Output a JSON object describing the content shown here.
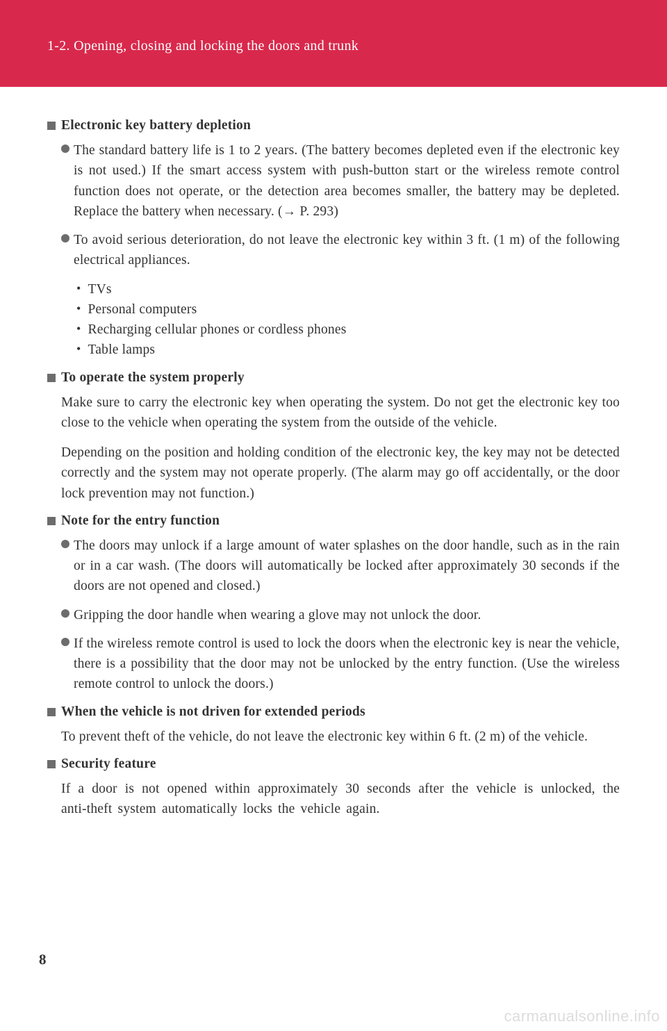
{
  "header": {
    "section_number": "1-2. Opening, closing and locking the doors and trunk",
    "background_color": "#d8294c",
    "text_color": "#ffffff"
  },
  "sections": [
    {
      "heading": "Electronic key battery depletion",
      "bullets": [
        "The standard battery life is 1 to 2 years. (The battery becomes depleted even if the electronic key is not used.) If the smart access system with push-button start or the wireless remote control function does not operate, or the detection area becomes smaller, the battery may be depleted. Replace the battery when necessary. (→ P. 293)",
        "To avoid serious deterioration, do not leave the electronic key within 3 ft. (1 m) of the following electrical appliances."
      ],
      "sub_items": [
        "TVs",
        "Personal computers",
        "Recharging cellular phones or cordless phones",
        "Table lamps"
      ]
    },
    {
      "heading": "To operate the system properly",
      "paragraphs": [
        "Make sure to carry the electronic key when operating the system. Do not get the electronic key too close to the vehicle when operating the system from the outside of the vehicle.",
        "Depending on the position and holding condition of the electronic key, the key may not be detected correctly and the system may not operate properly. (The alarm may go off accidentally, or the door lock prevention may not function.)"
      ]
    },
    {
      "heading": "Note for the entry function",
      "bullets": [
        "The doors may unlock if a large amount of water splashes on the door handle, such as in the rain or in a car wash. (The doors will automatically be locked after approximately 30 seconds if the doors are not opened and closed.)",
        "Gripping the door handle when wearing a glove may not unlock the door.",
        "If the wireless remote control is used to lock the doors when the electronic key is near the vehicle, there is a possibility that the door may not be unlocked by the entry function. (Use the wireless remote control to unlock the doors.)"
      ]
    },
    {
      "heading": "When the vehicle is not driven for extended periods",
      "paragraphs": [
        "To prevent theft of the vehicle, do not leave the electronic key within 6 ft. (2 m) of the vehicle."
      ]
    },
    {
      "heading": "Security feature",
      "paragraphs_wide": [
        "If a door is not opened within approximately 30 seconds after the vehicle is unlocked, the anti-theft system automatically locks the vehicle again."
      ]
    }
  ],
  "page_number": "8",
  "watermark": "carmanualsonline.info",
  "colors": {
    "header_band": "#d8294c",
    "header_text": "#ffffff",
    "body_text": "#333333",
    "bullet_gray": "#6c6c6c",
    "background": "#ffffff",
    "watermark": "#dcdcdc"
  },
  "typography": {
    "header_fontsize": 20,
    "heading_fontsize": 19.5,
    "body_fontsize": 19.5,
    "page_number_fontsize": 21
  }
}
